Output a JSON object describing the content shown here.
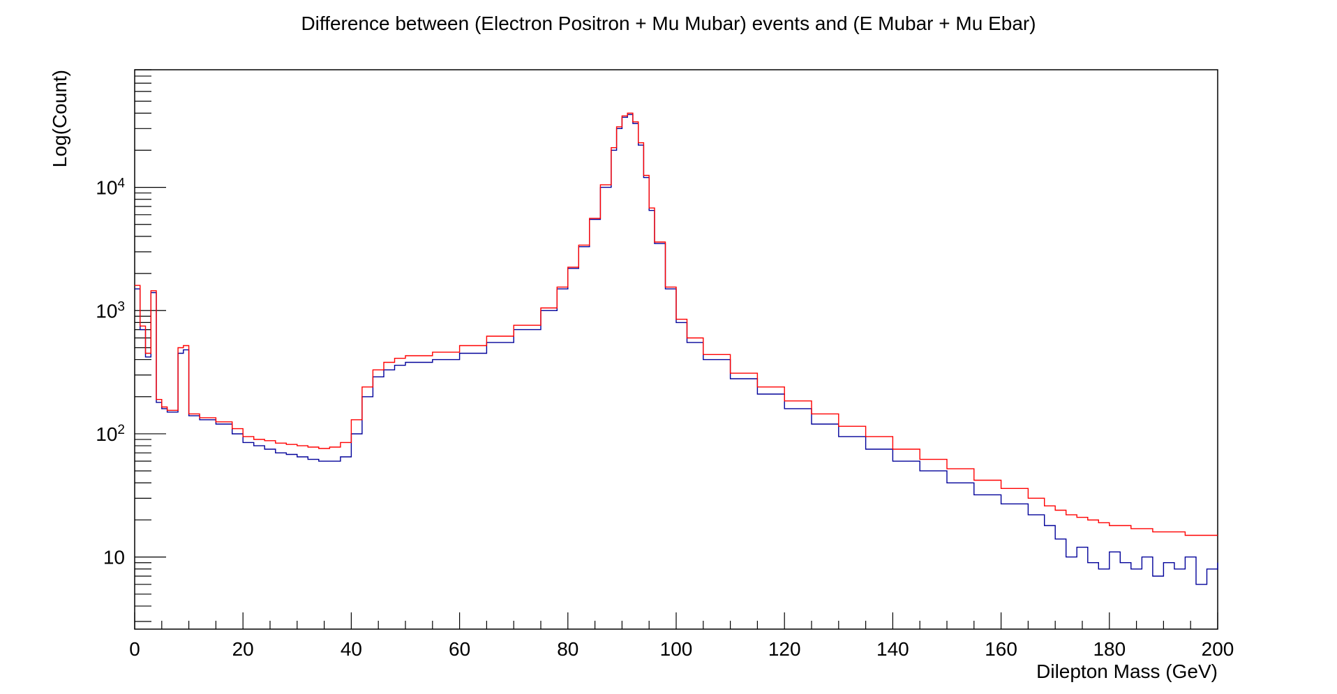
{
  "chart_data": {
    "type": "line",
    "title": "Difference between (Electron Positron + Mu Mubar) events and (E Mubar + Mu Ebar)",
    "xlabel": "Dilepton Mass (GeV)",
    "ylabel": "Log(Count)",
    "xlim": [
      0,
      200
    ],
    "ylim": [
      2.6,
      90000
    ],
    "yscale": "log",
    "grid": false,
    "x_ticks": [
      "0",
      "20",
      "40",
      "60",
      "80",
      "100",
      "120",
      "140",
      "160",
      "180",
      "200"
    ],
    "y_ticks": [
      {
        "value": 10,
        "base": "10",
        "exp": ""
      },
      {
        "value": 100,
        "base": "10",
        "exp": "2"
      },
      {
        "value": 1000,
        "base": "10",
        "exp": "3"
      },
      {
        "value": 10000,
        "base": "10",
        "exp": "4"
      }
    ],
    "series": [
      {
        "color": "#000099",
        "x": [
          0,
          1,
          2,
          3,
          4,
          5,
          6,
          8,
          9,
          10,
          12,
          15,
          18,
          20,
          22,
          24,
          26,
          28,
          30,
          32,
          34,
          36,
          38,
          40,
          42,
          44,
          46,
          48,
          50,
          55,
          60,
          65,
          70,
          75,
          78,
          80,
          82,
          84,
          86,
          88,
          89,
          90,
          91,
          92,
          93,
          94,
          95,
          96,
          98,
          100,
          102,
          105,
          110,
          115,
          120,
          125,
          130,
          135,
          140,
          145,
          150,
          155,
          160,
          165,
          168,
          170,
          172,
          174,
          176,
          178,
          180,
          182,
          184,
          186,
          188,
          190,
          192,
          194,
          196,
          198,
          200
        ],
        "y": [
          1500,
          700,
          420,
          1400,
          180,
          160,
          150,
          450,
          480,
          140,
          130,
          120,
          100,
          85,
          80,
          75,
          70,
          68,
          65,
          62,
          60,
          60,
          65,
          100,
          200,
          290,
          330,
          360,
          380,
          400,
          450,
          550,
          700,
          1000,
          1500,
          2200,
          3300,
          5500,
          10000,
          20000,
          30000,
          37000,
          39000,
          33000,
          22000,
          12000,
          6500,
          3500,
          1500,
          800,
          550,
          400,
          280,
          210,
          160,
          120,
          95,
          75,
          60,
          50,
          40,
          32,
          27,
          22,
          18,
          14,
          10,
          12,
          9,
          8,
          11,
          9,
          8,
          10,
          7,
          9,
          8,
          10,
          6,
          8,
          9
        ]
      },
      {
        "color": "#ff0000",
        "x": [
          0,
          1,
          2,
          3,
          4,
          5,
          6,
          8,
          9,
          10,
          12,
          15,
          18,
          20,
          22,
          24,
          26,
          28,
          30,
          32,
          34,
          36,
          38,
          40,
          42,
          44,
          46,
          48,
          50,
          55,
          60,
          65,
          70,
          75,
          78,
          80,
          82,
          84,
          86,
          88,
          89,
          90,
          91,
          92,
          93,
          94,
          95,
          96,
          98,
          100,
          102,
          105,
          110,
          115,
          120,
          125,
          130,
          135,
          140,
          145,
          150,
          155,
          160,
          165,
          168,
          170,
          172,
          174,
          176,
          178,
          180,
          182,
          184,
          186,
          188,
          190,
          192,
          194,
          196,
          198,
          200
        ],
        "y": [
          1600,
          750,
          450,
          1450,
          190,
          165,
          155,
          500,
          520,
          145,
          135,
          125,
          110,
          95,
          90,
          88,
          84,
          82,
          80,
          78,
          76,
          78,
          85,
          130,
          240,
          330,
          380,
          410,
          430,
          460,
          520,
          620,
          760,
          1050,
          1550,
          2250,
          3400,
          5600,
          10500,
          21000,
          31000,
          38000,
          40000,
          34000,
          23000,
          12500,
          6800,
          3600,
          1550,
          850,
          600,
          440,
          310,
          240,
          185,
          145,
          115,
          95,
          75,
          62,
          52,
          42,
          36,
          30,
          26,
          24,
          22,
          21,
          20,
          19,
          18,
          18,
          17,
          17,
          16,
          16,
          16,
          15,
          15,
          15,
          15
        ]
      }
    ]
  }
}
